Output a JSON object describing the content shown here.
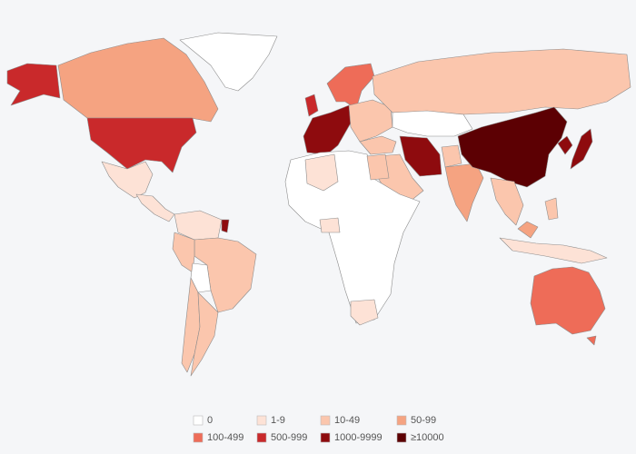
{
  "legend": [
    {
      "label": "0",
      "color": "#ffffff"
    },
    {
      "label": "1-9",
      "color": "#fde2d6"
    },
    {
      "label": "10-49",
      "color": "#fbc6ad"
    },
    {
      "label": "50-99",
      "color": "#f5a381"
    },
    {
      "label": "100-499",
      "color": "#ee6c58"
    },
    {
      "label": "500-999",
      "color": "#c9292b"
    },
    {
      "label": "1000-9999",
      "color": "#8e0b0e"
    },
    {
      "label": "≥10000",
      "color": "#5c0003"
    }
  ]
}
